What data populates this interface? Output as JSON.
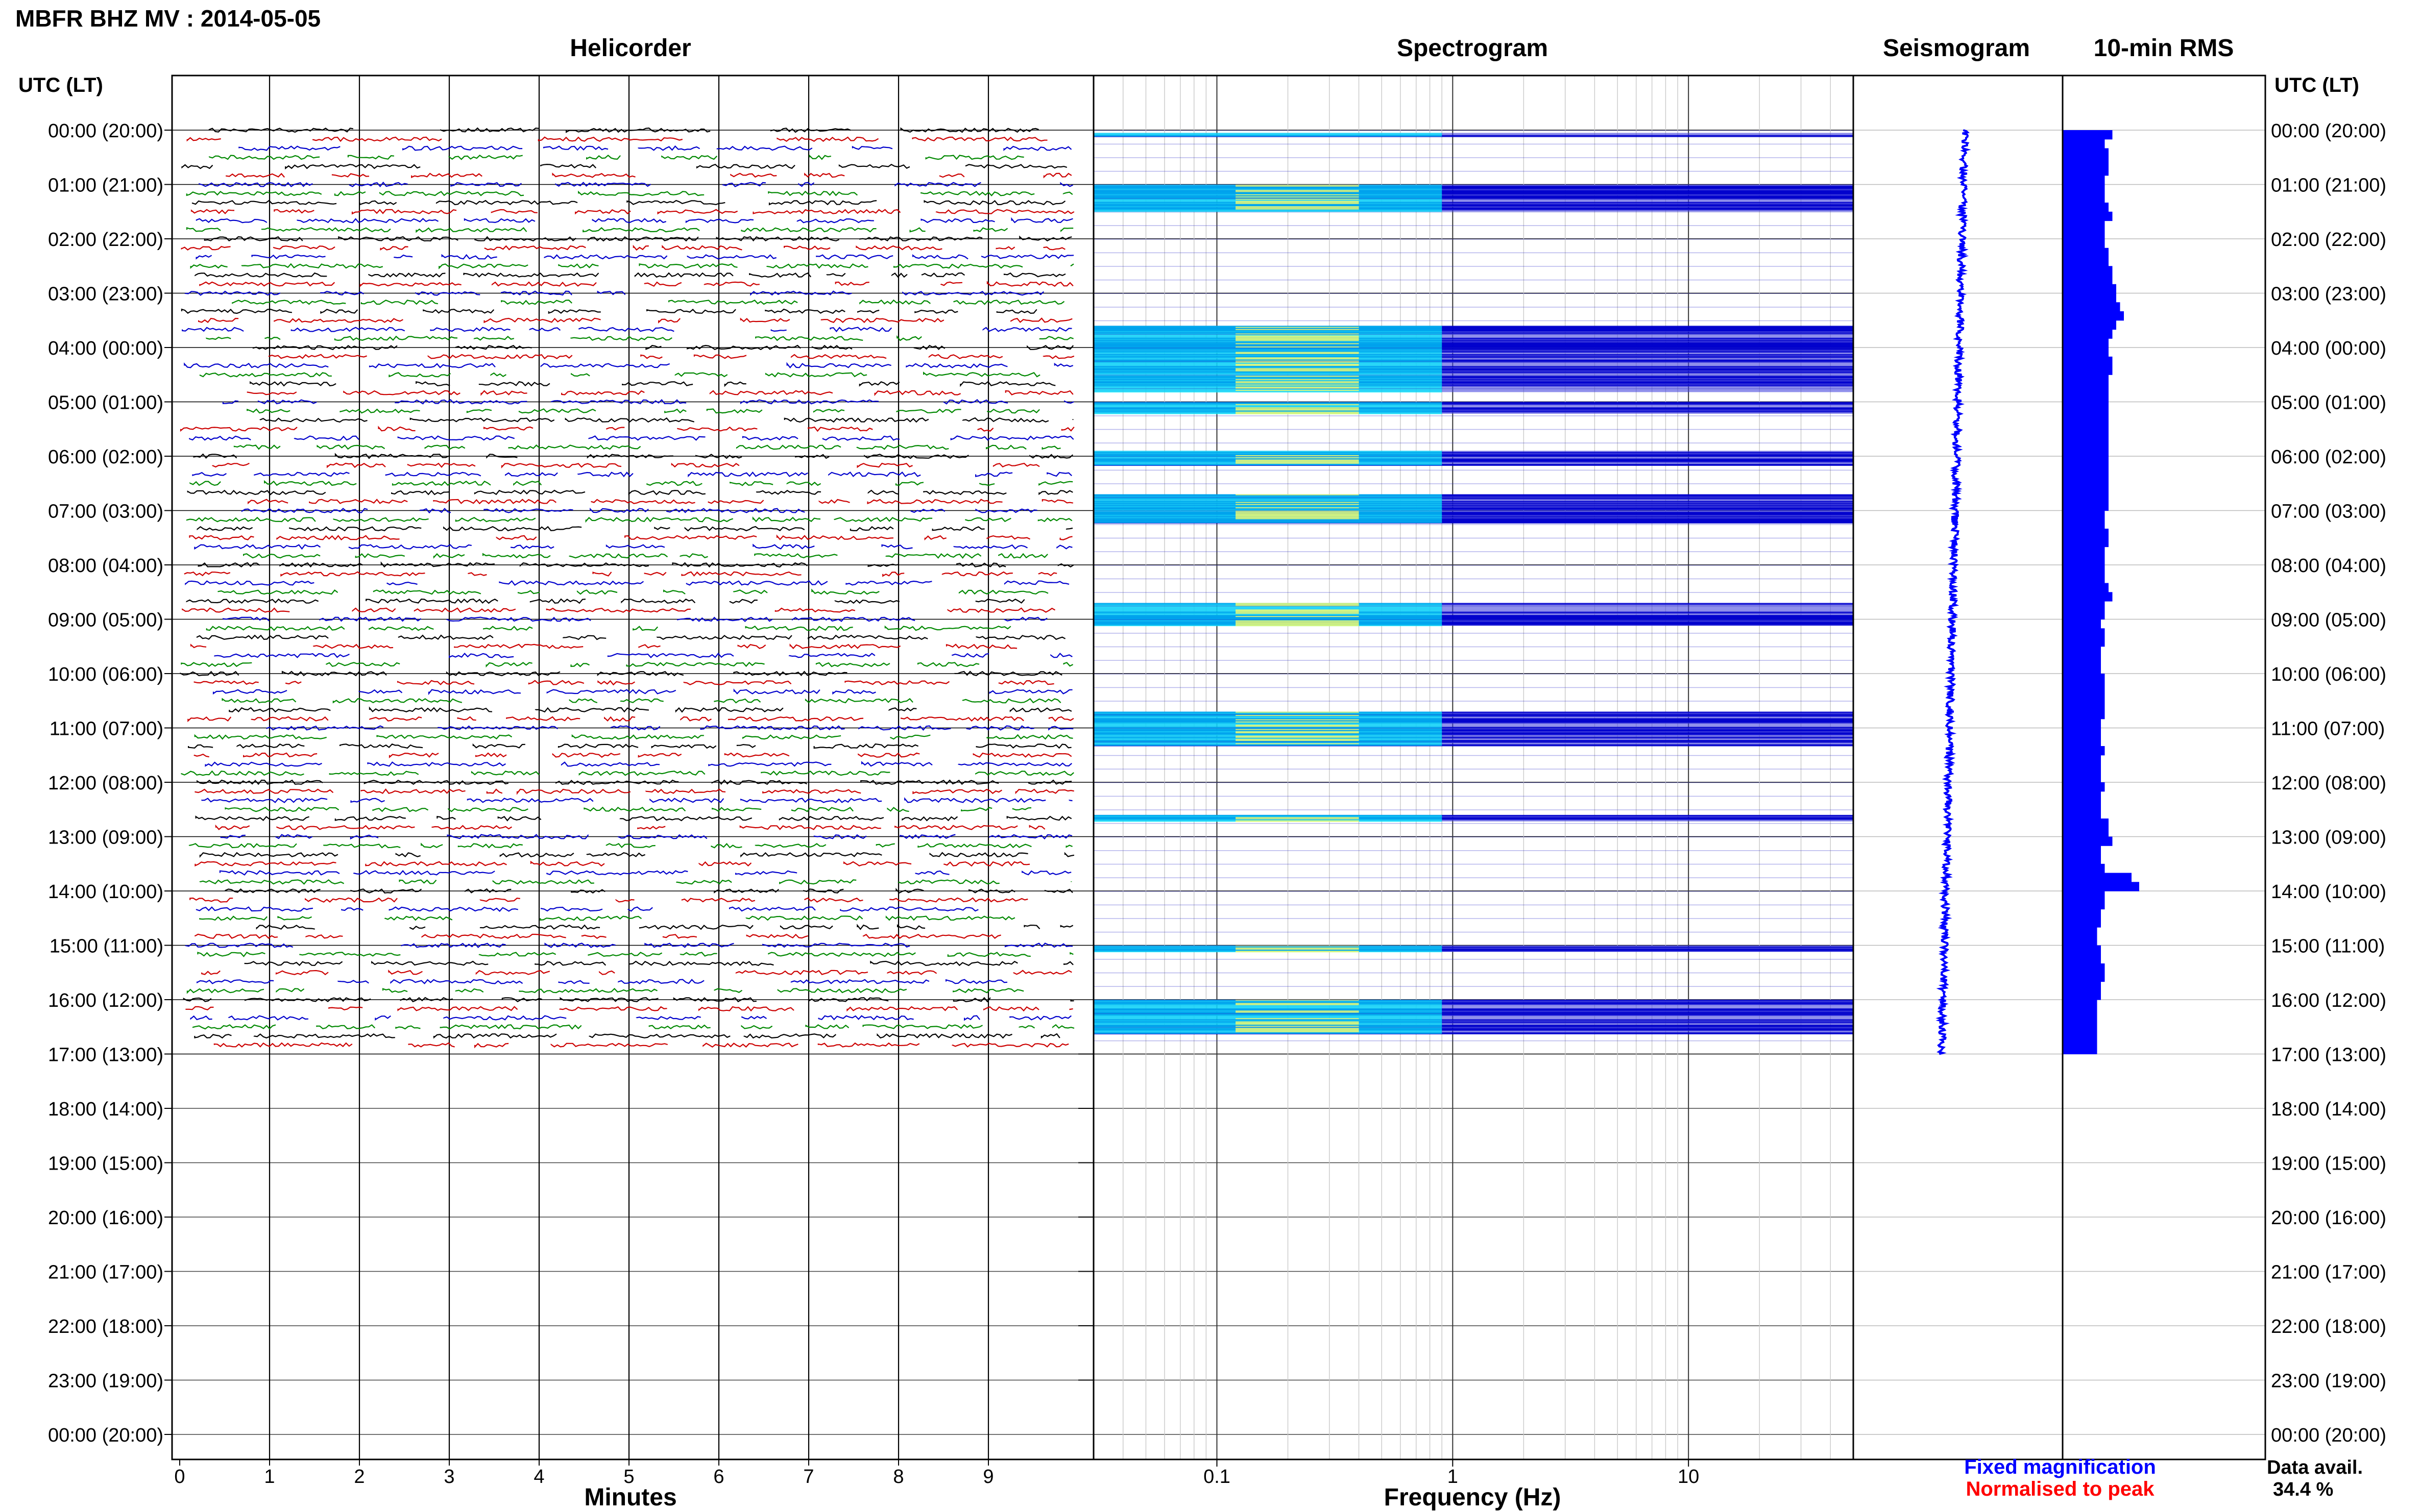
{
  "header": {
    "station_title": "MBFR BHZ MV : 2014-05-05",
    "left_axis_title": "UTC (LT)",
    "right_axis_title": "UTC (LT)"
  },
  "panels": {
    "helicorder": "Helicorder",
    "spectrogram": "Spectrogram",
    "seismogram": "Seismogram",
    "rms": "10-min RMS"
  },
  "x_axes": {
    "minutes_label": "Minutes",
    "frequency_label": "Frequency (Hz)",
    "minute_ticks": [
      "0",
      "1",
      "2",
      "3",
      "4",
      "5",
      "6",
      "7",
      "8",
      "9"
    ],
    "frequency_ticks": [
      "0.1",
      "1",
      "10"
    ]
  },
  "legend": {
    "fixed": "Fixed magnification",
    "normalised": "Normalised to peak",
    "fixed_color": "#0000ff",
    "normalised_color": "#ff0000"
  },
  "availability": {
    "label": "Data avail.",
    "value": "34.4 %"
  },
  "colors": {
    "trace_cycle": [
      "#000000",
      "#cc0000",
      "#0000cc",
      "#008800"
    ],
    "rms_fill": "#0000ff",
    "spectro_low": "#0000cc",
    "spectro_mid": "#00ffff",
    "spectro_high": "#ffff66"
  },
  "chart_data": {
    "type": "heatmap",
    "title": "MBFR BHZ MV : 2014-05-05",
    "time_ticks": [
      "00:00 (20:00)",
      "01:00 (21:00)",
      "02:00 (22:00)",
      "03:00 (23:00)",
      "04:00 (00:00)",
      "05:00 (01:00)",
      "06:00 (02:00)",
      "07:00 (03:00)",
      "08:00 (04:00)",
      "09:00 (05:00)",
      "10:00 (06:00)",
      "11:00 (07:00)",
      "12:00 (08:00)",
      "13:00 (09:00)",
      "14:00 (10:00)",
      "15:00 (11:00)",
      "16:00 (12:00)",
      "17:00 (13:00)",
      "18:00 (14:00)",
      "19:00 (15:00)",
      "20:00 (16:00)",
      "21:00 (17:00)",
      "22:00 (18:00)",
      "23:00 (19:00)",
      "00:00 (20:00)"
    ],
    "helicorder": {
      "xlabel": "Minutes",
      "xlim": [
        0,
        10
      ],
      "minutes_per_line": 10,
      "data_end_hour": 17.0
    },
    "spectrogram": {
      "xlabel": "Frequency (Hz)",
      "xscale": "log",
      "xlim": [
        0.03,
        50
      ],
      "active_bands_hours": [
        [
          0.05,
          0.1
        ],
        [
          1.0,
          1.5
        ],
        [
          3.6,
          4.8
        ],
        [
          5.0,
          5.2
        ],
        [
          5.9,
          6.15
        ],
        [
          6.7,
          7.2
        ],
        [
          8.7,
          9.1
        ],
        [
          10.7,
          11.3
        ],
        [
          12.6,
          12.7
        ],
        [
          15.0,
          15.1
        ],
        [
          16.0,
          16.6
        ]
      ]
    },
    "seismogram": {
      "type": "line",
      "x_offset_start": 0.0,
      "x_offset_end": -1.0,
      "data_end_hour": 17.0
    },
    "rms_10min": {
      "type": "bar",
      "interval_minutes": 10,
      "values": [
        0.65,
        0.55,
        0.6,
        0.6,
        0.6,
        0.55,
        0.55,
        0.55,
        0.6,
        0.65,
        0.55,
        0.55,
        0.55,
        0.6,
        0.6,
        0.65,
        0.65,
        0.7,
        0.7,
        0.75,
        0.8,
        0.7,
        0.65,
        0.6,
        0.6,
        0.65,
        0.65,
        0.6,
        0.6,
        0.6,
        0.6,
        0.6,
        0.6,
        0.6,
        0.6,
        0.6,
        0.6,
        0.6,
        0.6,
        0.6,
        0.6,
        0.6,
        0.55,
        0.55,
        0.6,
        0.6,
        0.55,
        0.55,
        0.55,
        0.55,
        0.6,
        0.65,
        0.55,
        0.55,
        0.5,
        0.55,
        0.55,
        0.5,
        0.5,
        0.5,
        0.55,
        0.55,
        0.55,
        0.55,
        0.55,
        0.5,
        0.5,
        0.5,
        0.55,
        0.5,
        0.5,
        0.5,
        0.55,
        0.5,
        0.5,
        0.5,
        0.6,
        0.6,
        0.65,
        0.5,
        0.5,
        0.55,
        0.9,
        1.0,
        0.55,
        0.55,
        0.5,
        0.5,
        0.45,
        0.45,
        0.5,
        0.5,
        0.55,
        0.55,
        0.5,
        0.5,
        0.45,
        0.45,
        0.45,
        0.45,
        0.45,
        0.45
      ]
    }
  }
}
